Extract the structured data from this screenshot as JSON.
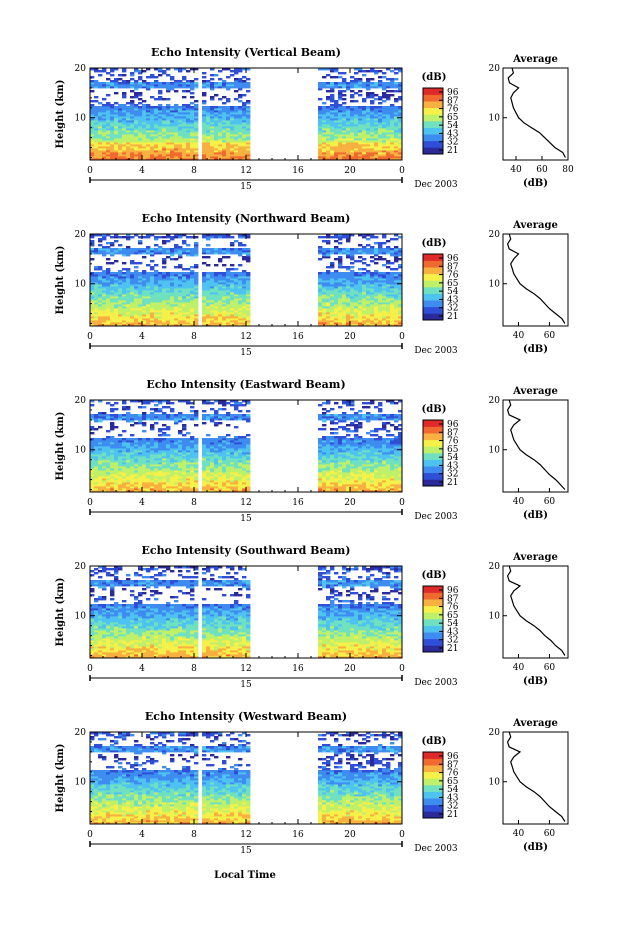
{
  "figure": {
    "local_time_label": "Local Time",
    "date_label": "Dec 2003",
    "date_tick": "15"
  },
  "colorbar": {
    "unit": "(dB)",
    "ticks": [
      "96",
      "87",
      "76",
      "65",
      "54",
      "43",
      "32",
      "21"
    ],
    "colors": [
      "#2a2a9a",
      "#2f4fd6",
      "#3f8cf0",
      "#4fc3f0",
      "#6fe0c0",
      "#bff06a",
      "#f5f04a",
      "#f8b040",
      "#f06a30",
      "#e02a2a"
    ]
  },
  "chart_data": [
    {
      "type": "heatmap",
      "title": "Echo Intensity (Vertical Beam)",
      "ylabel": "Height (km)",
      "xticks": [
        "0",
        "4",
        "8",
        "12",
        "16",
        "20",
        "0"
      ],
      "yticks": [
        "20",
        "10"
      ],
      "xlim": [
        0,
        24
      ],
      "ylim": [
        1.5,
        20
      ],
      "data_gaps_hours": [
        [
          8.3,
          8.5
        ],
        [
          12.3,
          17.6
        ]
      ],
      "colorbar_range_db": [
        21,
        96
      ],
      "average_profile": {
        "title": "Average",
        "xlabel": "(dB)",
        "xticks": [
          "40",
          "60",
          "80"
        ],
        "yticks": [
          "20",
          "10"
        ],
        "xlim": [
          30,
          80
        ],
        "height_km": [
          2,
          3,
          4,
          5,
          6,
          7,
          8,
          9,
          10,
          11,
          12,
          13,
          14,
          15,
          16,
          17,
          18,
          19,
          20
        ],
        "db": [
          78,
          76,
          70,
          66,
          62,
          58,
          52,
          46,
          42,
          40,
          38,
          37,
          36,
          38,
          42,
          35,
          34,
          38,
          37
        ]
      }
    },
    {
      "type": "heatmap",
      "title": "Echo Intensity (Northward Beam)",
      "ylabel": "Height (km)",
      "xticks": [
        "0",
        "4",
        "8",
        "12",
        "16",
        "20",
        "0"
      ],
      "yticks": [
        "20",
        "10"
      ],
      "xlim": [
        0,
        24
      ],
      "ylim": [
        1.5,
        20
      ],
      "data_gaps_hours": [
        [
          8.3,
          8.5
        ],
        [
          12.3,
          17.6
        ]
      ],
      "colorbar_range_db": [
        21,
        96
      ],
      "average_profile": {
        "title": "Average",
        "xlabel": "(dB)",
        "xticks": [
          "40",
          "60"
        ],
        "yticks": [
          "20",
          "10"
        ],
        "xlim": [
          30,
          72
        ],
        "height_km": [
          2,
          3,
          4,
          5,
          6,
          7,
          8,
          9,
          10,
          11,
          12,
          13,
          14,
          15,
          16,
          17,
          18,
          19,
          20
        ],
        "db": [
          70,
          68,
          64,
          60,
          57,
          54,
          50,
          45,
          41,
          39,
          37,
          36,
          35,
          37,
          40,
          34,
          33,
          35,
          34
        ]
      }
    },
    {
      "type": "heatmap",
      "title": "Echo Intensity (Eastward Beam)",
      "ylabel": "Height (km)",
      "xticks": [
        "0",
        "4",
        "8",
        "12",
        "16",
        "20",
        "0"
      ],
      "yticks": [
        "20",
        "10"
      ],
      "xlim": [
        0,
        24
      ],
      "ylim": [
        1.5,
        20
      ],
      "data_gaps_hours": [
        [
          8.3,
          8.5
        ],
        [
          12.3,
          17.6
        ]
      ],
      "colorbar_range_db": [
        21,
        96
      ],
      "average_profile": {
        "title": "Average",
        "xlabel": "(dB)",
        "xticks": [
          "40",
          "60"
        ],
        "yticks": [
          "20",
          "10"
        ],
        "xlim": [
          30,
          72
        ],
        "height_km": [
          2,
          3,
          4,
          5,
          6,
          7,
          8,
          9,
          10,
          11,
          12,
          13,
          14,
          15,
          16,
          17,
          18,
          19,
          20
        ],
        "db": [
          70,
          67,
          64,
          60,
          57,
          54,
          50,
          45,
          41,
          39,
          37,
          36,
          35,
          37,
          41,
          34,
          33,
          35,
          34
        ]
      }
    },
    {
      "type": "heatmap",
      "title": "Echo Intensity (Southward Beam)",
      "ylabel": "Height (km)",
      "xticks": [
        "0",
        "4",
        "8",
        "12",
        "16",
        "20",
        "0"
      ],
      "yticks": [
        "20",
        "10"
      ],
      "xlim": [
        0,
        24
      ],
      "ylim": [
        1.5,
        20
      ],
      "data_gaps_hours": [
        [
          8.3,
          8.5
        ],
        [
          12.3,
          17.6
        ]
      ],
      "colorbar_range_db": [
        21,
        96
      ],
      "average_profile": {
        "title": "Average",
        "xlabel": "(dB)",
        "xticks": [
          "40",
          "60"
        ],
        "yticks": [
          "20",
          "10"
        ],
        "xlim": [
          30,
          72
        ],
        "height_km": [
          2,
          3,
          4,
          5,
          6,
          7,
          8,
          9,
          10,
          11,
          12,
          13,
          14,
          15,
          16,
          17,
          18,
          19,
          20
        ],
        "db": [
          70,
          68,
          64,
          61,
          57,
          54,
          50,
          45,
          41,
          39,
          37,
          36,
          35,
          37,
          41,
          34,
          33,
          35,
          34
        ]
      }
    },
    {
      "type": "heatmap",
      "title": "Echo Intensity (Westward Beam)",
      "ylabel": "Height (km)",
      "xticks": [
        "0",
        "4",
        "8",
        "12",
        "16",
        "20",
        "0"
      ],
      "yticks": [
        "20",
        "10"
      ],
      "xlim": [
        0,
        24
      ],
      "ylim": [
        1.5,
        20
      ],
      "data_gaps_hours": [
        [
          8.3,
          8.5
        ],
        [
          12.3,
          17.6
        ]
      ],
      "colorbar_range_db": [
        21,
        96
      ],
      "average_profile": {
        "title": "Average",
        "xlabel": "(dB)",
        "xticks": [
          "40",
          "60"
        ],
        "yticks": [
          "20",
          "10"
        ],
        "xlim": [
          30,
          72
        ],
        "height_km": [
          2,
          3,
          4,
          5,
          6,
          7,
          8,
          9,
          10,
          11,
          12,
          13,
          14,
          15,
          16,
          17,
          18,
          19,
          20
        ],
        "db": [
          70,
          68,
          64,
          60,
          57,
          54,
          50,
          45,
          41,
          39,
          37,
          36,
          35,
          37,
          41,
          34,
          33,
          35,
          34
        ]
      }
    }
  ]
}
